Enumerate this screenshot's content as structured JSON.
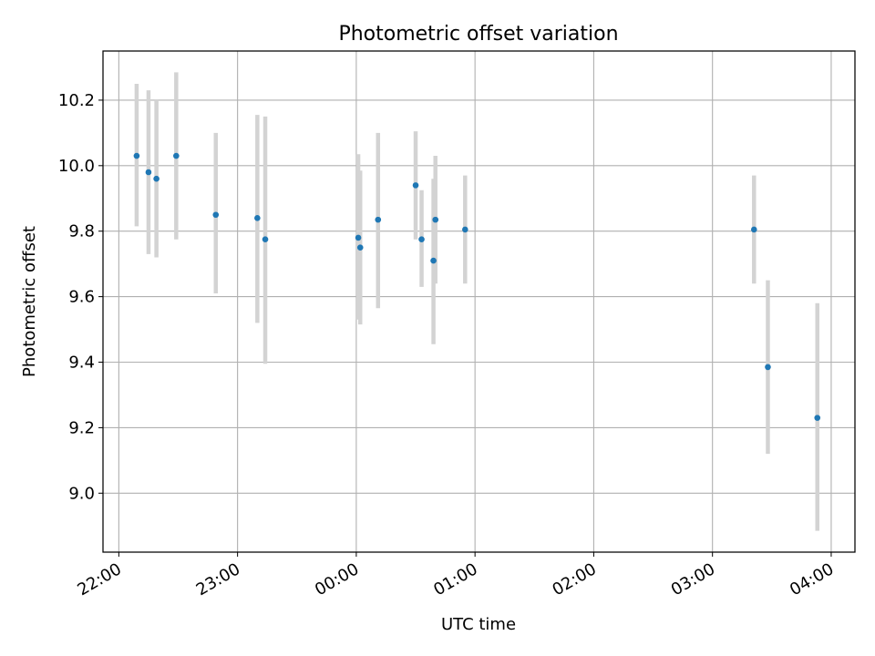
{
  "chart_data": {
    "type": "scatter",
    "title": "Photometric offset variation",
    "xlabel": "UTC time",
    "ylabel": "Photometric offset",
    "x_ticks": [
      "22:00",
      "23:00",
      "00:00",
      "01:00",
      "02:00",
      "03:00",
      "04:00"
    ],
    "y_ticks": [
      "9.0",
      "9.2",
      "9.4",
      "9.6",
      "9.8",
      "10.0",
      "10.2"
    ],
    "xlim": [
      "21:52",
      "04:12"
    ],
    "ylim": [
      8.82,
      10.35
    ],
    "grid": true,
    "errorbar_color": "#d3d3d3",
    "point_color": "#1f77b4",
    "points": [
      {
        "x": "22:09",
        "y": 10.03,
        "err_low": 9.815,
        "err_high": 10.25
      },
      {
        "x": "22:15",
        "y": 9.98,
        "err_low": 9.73,
        "err_high": 10.23
      },
      {
        "x": "22:19",
        "y": 9.96,
        "err_low": 9.72,
        "err_high": 10.2
      },
      {
        "x": "22:29",
        "y": 10.03,
        "err_low": 9.775,
        "err_high": 10.285
      },
      {
        "x": "22:49",
        "y": 9.85,
        "err_low": 9.61,
        "err_high": 10.1
      },
      {
        "x": "23:10",
        "y": 9.84,
        "err_low": 9.52,
        "err_high": 10.155
      },
      {
        "x": "23:14",
        "y": 9.775,
        "err_low": 9.395,
        "err_high": 10.15
      },
      {
        "x": "00:01",
        "y": 9.78,
        "err_low": 9.53,
        "err_high": 10.035
      },
      {
        "x": "00:02",
        "y": 9.75,
        "err_low": 9.515,
        "err_high": 9.985
      },
      {
        "x": "00:11",
        "y": 9.835,
        "err_low": 9.565,
        "err_high": 10.1
      },
      {
        "x": "00:30",
        "y": 9.94,
        "err_low": 9.775,
        "err_high": 10.105
      },
      {
        "x": "00:33",
        "y": 9.775,
        "err_low": 9.63,
        "err_high": 9.925
      },
      {
        "x": "00:39",
        "y": 9.71,
        "err_low": 9.455,
        "err_high": 9.96
      },
      {
        "x": "00:40",
        "y": 9.835,
        "err_low": 9.64,
        "err_high": 10.03
      },
      {
        "x": "00:55",
        "y": 9.805,
        "err_low": 9.64,
        "err_high": 9.97
      },
      {
        "x": "03:21",
        "y": 9.805,
        "err_low": 9.64,
        "err_high": 9.97
      },
      {
        "x": "03:28",
        "y": 9.385,
        "err_low": 9.12,
        "err_high": 9.65
      },
      {
        "x": "03:53",
        "y": 9.23,
        "err_low": 8.885,
        "err_high": 9.58
      }
    ]
  }
}
